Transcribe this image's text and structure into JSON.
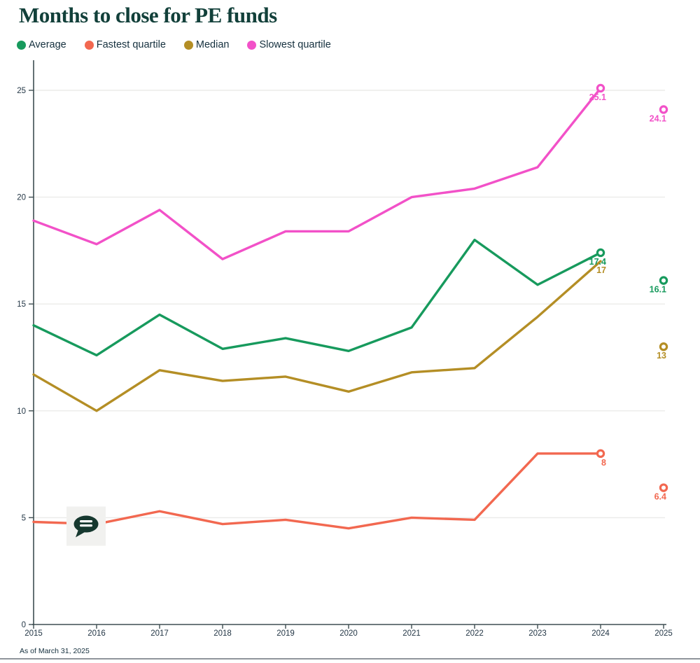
{
  "title": "Months to close for PE funds",
  "footer": {
    "as_of": "As of March 31, 2025"
  },
  "colors": {
    "title": "#12403A",
    "text": "#15303E",
    "axis": "#3E4E52",
    "grid": "#EBEBE9",
    "divider": "#8F959B",
    "annotation_bg": "#F1F1EF",
    "annotation_bubble": "#16382F"
  },
  "chart_data": {
    "type": "line",
    "title": "Months to close for PE funds",
    "xlabel": "",
    "ylabel": "",
    "x": [
      2015,
      2016,
      2017,
      2018,
      2019,
      2020,
      2021,
      2022,
      2023,
      2024,
      2025
    ],
    "ylim": [
      0,
      25
    ],
    "yticks": [
      0,
      5,
      10,
      15,
      20,
      25
    ],
    "grid": "horizontal",
    "legend_position": "top",
    "line_extends_to": 2024,
    "series": [
      {
        "name": "Average",
        "color": "#179A5D",
        "values": [
          14.0,
          12.6,
          14.5,
          12.9,
          13.4,
          12.8,
          13.9,
          18.0,
          15.9,
          17.4,
          16.1
        ],
        "ring_years": [
          2024,
          2025
        ],
        "point_labels": {
          "2024": "17.4",
          "2025": "16.1"
        }
      },
      {
        "name": "Fastest quartile",
        "color": "#F26850",
        "values": [
          4.8,
          4.7,
          5.3,
          4.7,
          4.9,
          4.5,
          5.0,
          4.9,
          8.0,
          8.0,
          6.4
        ],
        "ring_years": [
          2024,
          2025
        ],
        "point_labels": {
          "2024": "8",
          "2025": "6.4"
        }
      },
      {
        "name": "Median",
        "color": "#B48E25",
        "values": [
          11.7,
          10.0,
          11.9,
          11.4,
          11.6,
          10.9,
          11.8,
          12.0,
          14.4,
          17.0,
          13.0
        ],
        "ring_years": [
          2025
        ],
        "point_labels": {
          "2024": "17",
          "2025": "13"
        }
      },
      {
        "name": "Slowest quartile",
        "color": "#F251C8",
        "values": [
          18.9,
          17.8,
          19.4,
          17.1,
          18.4,
          18.4,
          20.0,
          20.4,
          21.4,
          25.1,
          24.1
        ],
        "ring_years": [
          2024,
          2025
        ],
        "point_labels": {
          "2024": "25.1",
          "2025": "24.1"
        }
      }
    ],
    "annotation": {
      "type": "comment-bubble",
      "series": "Fastest quartile",
      "year": 2016
    }
  }
}
